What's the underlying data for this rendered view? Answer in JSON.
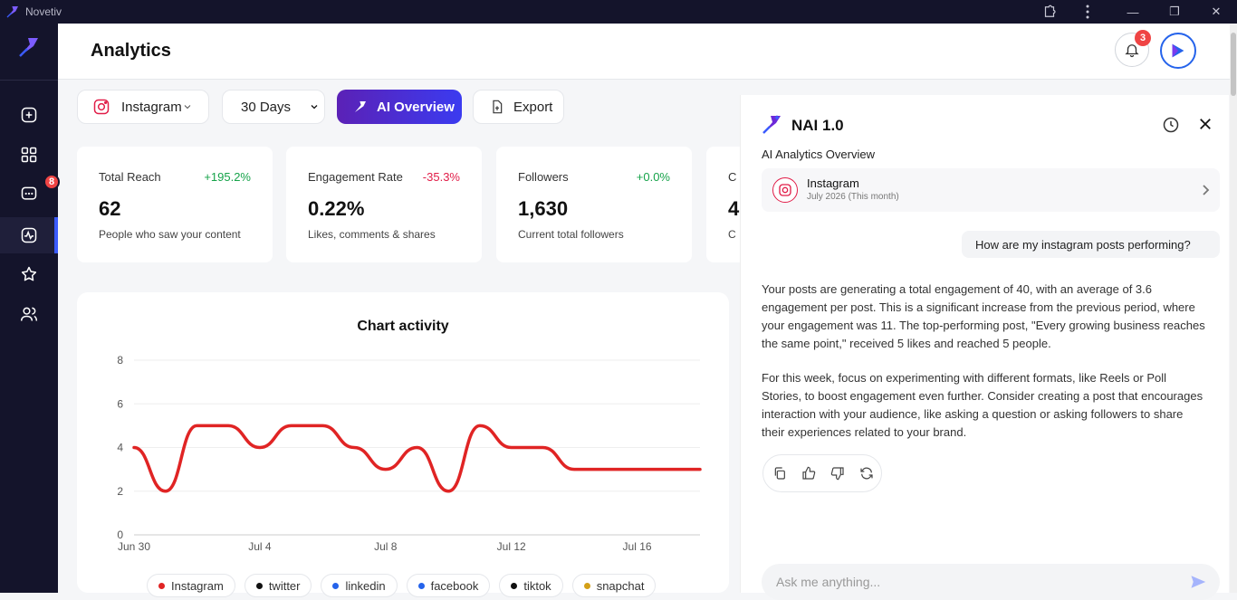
{
  "window": {
    "app_title": "Novetiv"
  },
  "sidebar": {
    "items": [
      {
        "icon": "plus-square-icon"
      },
      {
        "icon": "grid-icon"
      },
      {
        "icon": "messages-icon",
        "badge": "8"
      },
      {
        "icon": "analytics-icon",
        "active": true
      },
      {
        "icon": "star-icon"
      },
      {
        "icon": "users-icon"
      }
    ]
  },
  "header": {
    "title": "Analytics",
    "notification_count": "3"
  },
  "toolbar": {
    "platform": "Instagram",
    "period": "30 Days",
    "period_options": [
      "30 Days"
    ],
    "ai_label": "AI Overview",
    "export_label": "Export"
  },
  "stats": [
    {
      "name": "Total Reach",
      "delta": "+195.2%",
      "value": "62",
      "desc": "People who saw your content"
    },
    {
      "name": "Engagement Rate",
      "delta": "-35.3%",
      "value": "0.22%",
      "desc": "Likes, comments & shares"
    },
    {
      "name": "Followers",
      "delta": "+0.0%",
      "value": "1,630",
      "desc": "Current total followers"
    },
    {
      "name": "C",
      "delta": "",
      "value": "4",
      "desc": "C"
    }
  ],
  "chart_data": {
    "type": "line",
    "title": "Chart activity",
    "xlabel": "",
    "ylabel": "",
    "ylim": [
      0,
      8
    ],
    "yticks": [
      "0",
      "2",
      "4",
      "6",
      "8"
    ],
    "x_tick_labels": [
      "Jun 30",
      "Jul 4",
      "Jul 8",
      "Jul 12",
      "Jul 16"
    ],
    "x": [
      "Jun 30",
      "Jul 1",
      "Jul 2",
      "Jul 3",
      "Jul 4",
      "Jul 5",
      "Jul 6",
      "Jul 7",
      "Jul 8",
      "Jul 9",
      "Jul 10",
      "Jul 11",
      "Jul 12",
      "Jul 13",
      "Jul 14",
      "Jul 15",
      "Jul 16",
      "Jul 17",
      "Jul 18"
    ],
    "series": [
      {
        "name": "Instagram",
        "color": "#e02424",
        "values": [
          4,
          2,
          5,
          5,
          4,
          5,
          5,
          4,
          3,
          4,
          2,
          5,
          4,
          4,
          3,
          3,
          3,
          3,
          3
        ]
      }
    ],
    "legend": [
      {
        "label": "Instagram",
        "color": "#e02424"
      },
      {
        "label": "twitter",
        "color": "#111111"
      },
      {
        "label": "linkedin",
        "color": "#2563eb"
      },
      {
        "label": "facebook",
        "color": "#2563eb"
      },
      {
        "label": "tiktok",
        "color": "#111111"
      },
      {
        "label": "snapchat",
        "color": "#d4a017"
      }
    ],
    "grid": true
  },
  "ai": {
    "title": "NAI 1.0",
    "subtitle": "AI Analytics Overview",
    "context_name": "Instagram",
    "context_date": "July 2026 (This month)",
    "question": "How are my instagram posts performing?",
    "answer_p1": "Your posts are generating a total engagement of 40, with an average of 3.6 engagement per post. This is a significant increase from the previous period, where your engagement was 11. The top-performing post, \"Every growing business reaches the same point,\" received 5 likes and reached 5 people.",
    "answer_p2": "For this week, focus on experimenting with different formats, like Reels or Poll Stories, to boost engagement even further. Consider creating a post that encourages interaction with your audience, like asking a question or asking followers to share their experiences related to your brand.",
    "input_placeholder": "Ask me anything..."
  },
  "colors": {
    "accent": "#3b5bfd",
    "sidebar_bg": "#14142b",
    "ai_gradient_start": "#5b21b6",
    "ai_gradient_end": "#3b3bf0"
  }
}
